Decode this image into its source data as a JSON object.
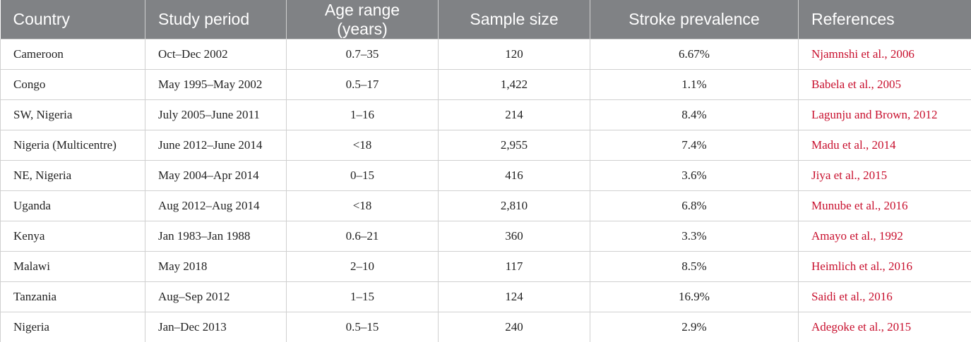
{
  "table": {
    "header": [
      "Country",
      "Study period",
      "Age range (years)",
      "Sample size",
      "Stroke prevalence",
      "References"
    ],
    "rows": [
      [
        "Cameroon",
        "Oct–Dec 2002",
        "0.7–35",
        "120",
        "6.67%",
        "Njamnshi et al., 2006"
      ],
      [
        "Congo",
        "May 1995–May 2002",
        "0.5–17",
        "1,422",
        "1.1%",
        "Babela et al., 2005"
      ],
      [
        "SW, Nigeria",
        "July 2005–June 2011",
        "1–16",
        "214",
        "8.4%",
        "Lagunju and Brown, 2012"
      ],
      [
        "Nigeria (Multicentre)",
        "June 2012–June 2014",
        "<18",
        "2,955",
        "7.4%",
        "Madu et al., 2014"
      ],
      [
        "NE, Nigeria",
        "May 2004–Apr 2014",
        "0–15",
        "416",
        "3.6%",
        "Jiya et al., 2015"
      ],
      [
        "Uganda",
        "Aug 2012–Aug 2014",
        "<18",
        "2,810",
        "6.8%",
        "Munube et al., 2016"
      ],
      [
        "Kenya",
        "Jan 1983–Jan 1988",
        "0.6–21",
        "360",
        "3.3%",
        "Amayo et al., 1992"
      ],
      [
        "Malawi",
        "May 2018",
        "2–10",
        "117",
        "8.5%",
        "Heimlich et al., 2016"
      ],
      [
        "Tanzania",
        "Aug–Sep 2012",
        "1–15",
        "124",
        "16.9%",
        "Saidi et al., 2016"
      ],
      [
        "Nigeria",
        "Jan–Dec 2013",
        "0.5–15",
        "240",
        "2.9%",
        "Adegoke et al., 2015"
      ]
    ]
  }
}
